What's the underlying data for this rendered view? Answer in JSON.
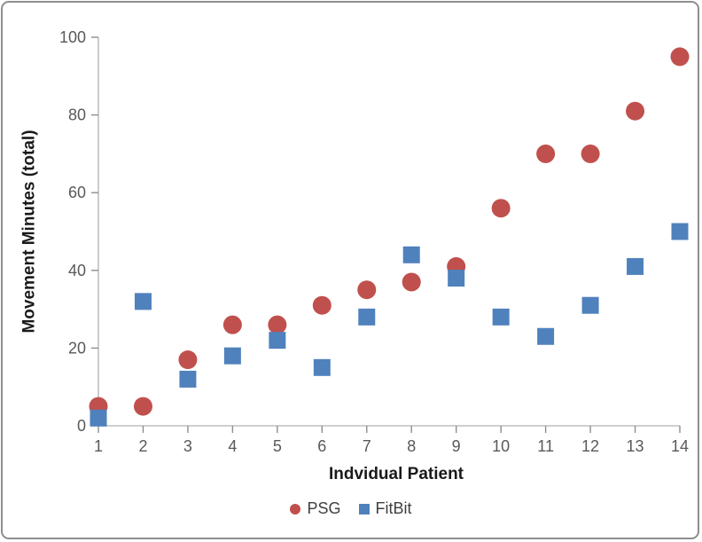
{
  "frame": {
    "border_color": "#8e8e8e",
    "background": "#ffffff"
  },
  "chart_data": {
    "type": "scatter",
    "title": "",
    "xlabel": "Indvidual Patient",
    "ylabel": "Movement Minutes (total)",
    "x": [
      1,
      2,
      3,
      4,
      5,
      6,
      7,
      8,
      9,
      10,
      11,
      12,
      13,
      14
    ],
    "series": [
      {
        "name": "PSG",
        "marker": "circle",
        "color": "#C0504D",
        "values": [
          5,
          5,
          17,
          26,
          26,
          31,
          35,
          37,
          41,
          56,
          70,
          70,
          81,
          95
        ]
      },
      {
        "name": "FitBit",
        "marker": "square",
        "color": "#4F81BD",
        "values": [
          2,
          32,
          12,
          18,
          22,
          15,
          28,
          44,
          38,
          28,
          23,
          31,
          41,
          50
        ]
      }
    ],
    "xlim": [
      1,
      14
    ],
    "ylim": [
      0,
      100
    ],
    "x_ticks": [
      "1",
      "2",
      "3",
      "4",
      "5",
      "6",
      "7",
      "8",
      "9",
      "10",
      "11",
      "12",
      "13",
      "14"
    ],
    "y_ticks": [
      "0",
      "20",
      "40",
      "60",
      "80",
      "100"
    ],
    "grid": false,
    "legend_position": "bottom",
    "axis_line_color": "#bfbfbf",
    "tick_mark_color": "#8e8e8e",
    "tick_label_color": "#595959",
    "axis_title_color": "#1a1a1a"
  }
}
